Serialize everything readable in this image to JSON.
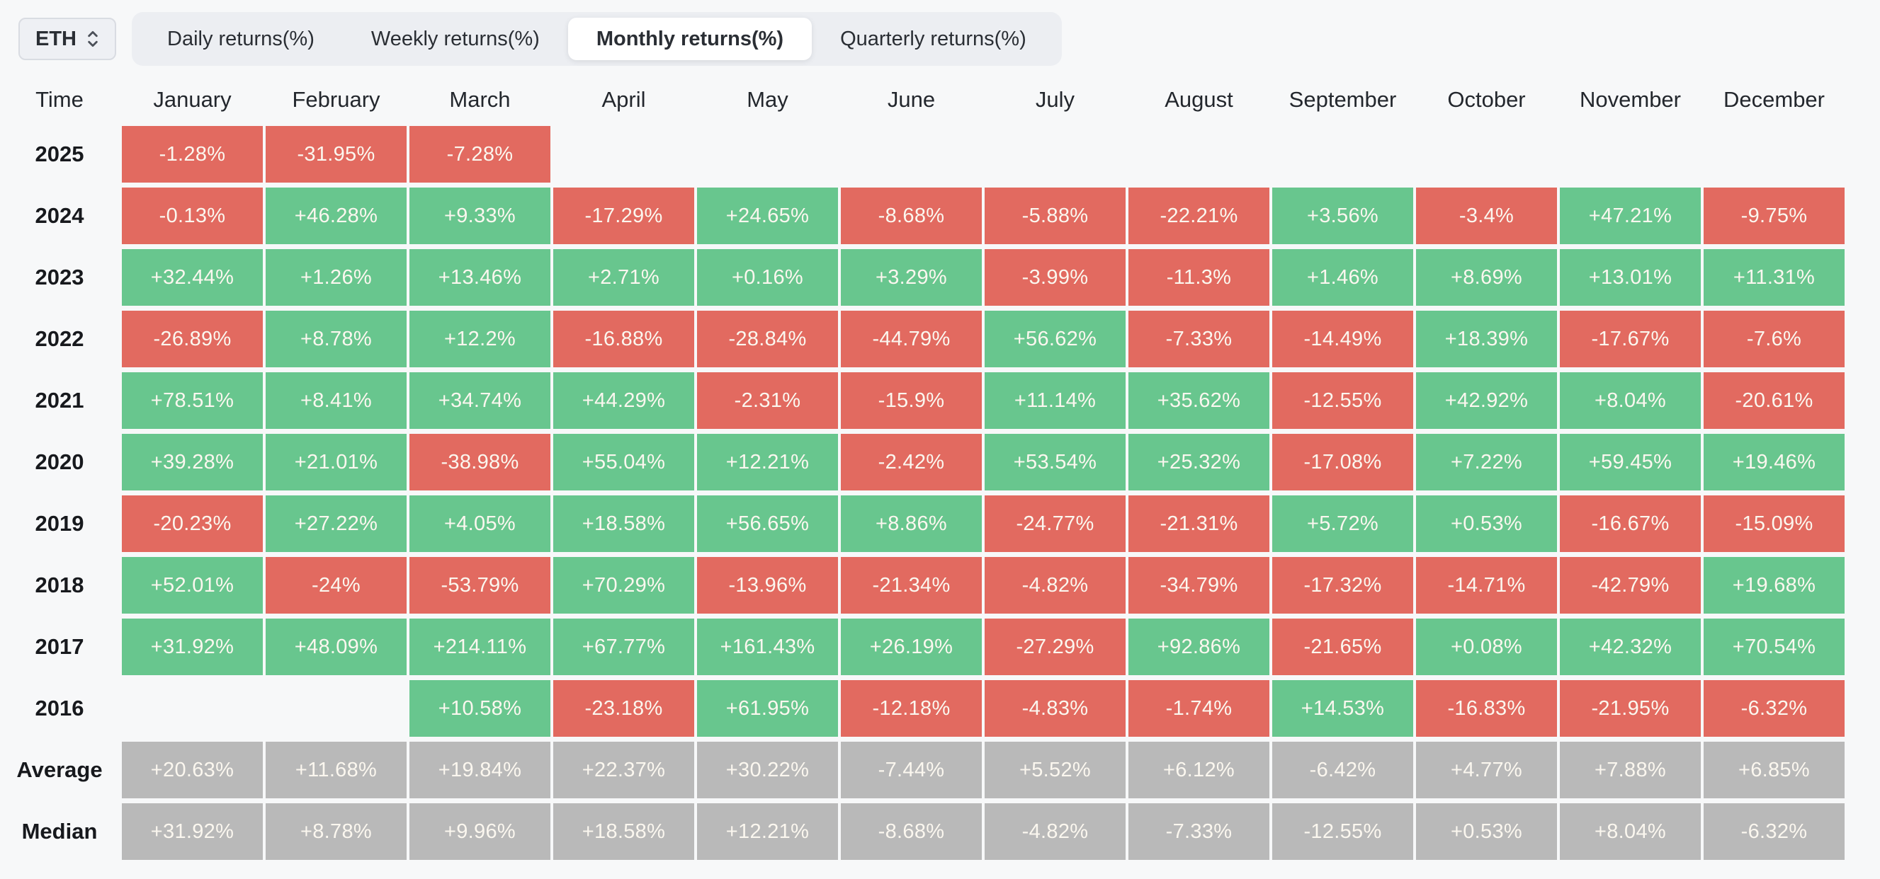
{
  "asset_selector": {
    "value": "ETH"
  },
  "tabs": [
    {
      "label": "Daily returns(%)",
      "active": false
    },
    {
      "label": "Weekly returns(%)",
      "active": false
    },
    {
      "label": "Monthly returns(%)",
      "active": true
    },
    {
      "label": "Quarterly returns(%)",
      "active": false
    }
  ],
  "colors": {
    "positive": "#68c68e",
    "negative": "#e26a60",
    "neutral": "#b9b9b9",
    "page_bg": "#f7f8f9",
    "tabbar_bg": "#eceef2",
    "active_tab_bg": "#ffffff",
    "cell_text": "#fbf7ef"
  },
  "table": {
    "time_header": "Time",
    "months": [
      "January",
      "February",
      "March",
      "April",
      "May",
      "June",
      "July",
      "August",
      "September",
      "October",
      "November",
      "December"
    ],
    "rows": [
      {
        "label": "2025",
        "type": "year",
        "cells": [
          {
            "v": "-1.28%",
            "c": "red"
          },
          {
            "v": "-31.95%",
            "c": "red"
          },
          {
            "v": "-7.28%",
            "c": "red"
          },
          null,
          null,
          null,
          null,
          null,
          null,
          null,
          null,
          null
        ]
      },
      {
        "label": "2024",
        "type": "year",
        "cells": [
          {
            "v": "-0.13%",
            "c": "red"
          },
          {
            "v": "+46.28%",
            "c": "green"
          },
          {
            "v": "+9.33%",
            "c": "green"
          },
          {
            "v": "-17.29%",
            "c": "red"
          },
          {
            "v": "+24.65%",
            "c": "green"
          },
          {
            "v": "-8.68%",
            "c": "red"
          },
          {
            "v": "-5.88%",
            "c": "red"
          },
          {
            "v": "-22.21%",
            "c": "red"
          },
          {
            "v": "+3.56%",
            "c": "green"
          },
          {
            "v": "-3.4%",
            "c": "red"
          },
          {
            "v": "+47.21%",
            "c": "green"
          },
          {
            "v": "-9.75%",
            "c": "red"
          }
        ]
      },
      {
        "label": "2023",
        "type": "year",
        "cells": [
          {
            "v": "+32.44%",
            "c": "green"
          },
          {
            "v": "+1.26%",
            "c": "green"
          },
          {
            "v": "+13.46%",
            "c": "green"
          },
          {
            "v": "+2.71%",
            "c": "green"
          },
          {
            "v": "+0.16%",
            "c": "green"
          },
          {
            "v": "+3.29%",
            "c": "green"
          },
          {
            "v": "-3.99%",
            "c": "red"
          },
          {
            "v": "-11.3%",
            "c": "red"
          },
          {
            "v": "+1.46%",
            "c": "green"
          },
          {
            "v": "+8.69%",
            "c": "green"
          },
          {
            "v": "+13.01%",
            "c": "green"
          },
          {
            "v": "+11.31%",
            "c": "green"
          }
        ]
      },
      {
        "label": "2022",
        "type": "year",
        "cells": [
          {
            "v": "-26.89%",
            "c": "red"
          },
          {
            "v": "+8.78%",
            "c": "green"
          },
          {
            "v": "+12.2%",
            "c": "green"
          },
          {
            "v": "-16.88%",
            "c": "red"
          },
          {
            "v": "-28.84%",
            "c": "red"
          },
          {
            "v": "-44.79%",
            "c": "red"
          },
          {
            "v": "+56.62%",
            "c": "green"
          },
          {
            "v": "-7.33%",
            "c": "red"
          },
          {
            "v": "-14.49%",
            "c": "red"
          },
          {
            "v": "+18.39%",
            "c": "green"
          },
          {
            "v": "-17.67%",
            "c": "red"
          },
          {
            "v": "-7.6%",
            "c": "red"
          }
        ]
      },
      {
        "label": "2021",
        "type": "year",
        "cells": [
          {
            "v": "+78.51%",
            "c": "green"
          },
          {
            "v": "+8.41%",
            "c": "green"
          },
          {
            "v": "+34.74%",
            "c": "green"
          },
          {
            "v": "+44.29%",
            "c": "green"
          },
          {
            "v": "-2.31%",
            "c": "red"
          },
          {
            "v": "-15.9%",
            "c": "red"
          },
          {
            "v": "+11.14%",
            "c": "green"
          },
          {
            "v": "+35.62%",
            "c": "green"
          },
          {
            "v": "-12.55%",
            "c": "red"
          },
          {
            "v": "+42.92%",
            "c": "green"
          },
          {
            "v": "+8.04%",
            "c": "green"
          },
          {
            "v": "-20.61%",
            "c": "red"
          }
        ]
      },
      {
        "label": "2020",
        "type": "year",
        "cells": [
          {
            "v": "+39.28%",
            "c": "green"
          },
          {
            "v": "+21.01%",
            "c": "green"
          },
          {
            "v": "-38.98%",
            "c": "red"
          },
          {
            "v": "+55.04%",
            "c": "green"
          },
          {
            "v": "+12.21%",
            "c": "green"
          },
          {
            "v": "-2.42%",
            "c": "red"
          },
          {
            "v": "+53.54%",
            "c": "green"
          },
          {
            "v": "+25.32%",
            "c": "green"
          },
          {
            "v": "-17.08%",
            "c": "red"
          },
          {
            "v": "+7.22%",
            "c": "green"
          },
          {
            "v": "+59.45%",
            "c": "green"
          },
          {
            "v": "+19.46%",
            "c": "green"
          }
        ]
      },
      {
        "label": "2019",
        "type": "year",
        "cells": [
          {
            "v": "-20.23%",
            "c": "red"
          },
          {
            "v": "+27.22%",
            "c": "green"
          },
          {
            "v": "+4.05%",
            "c": "green"
          },
          {
            "v": "+18.58%",
            "c": "green"
          },
          {
            "v": "+56.65%",
            "c": "green"
          },
          {
            "v": "+8.86%",
            "c": "green"
          },
          {
            "v": "-24.77%",
            "c": "red"
          },
          {
            "v": "-21.31%",
            "c": "red"
          },
          {
            "v": "+5.72%",
            "c": "green"
          },
          {
            "v": "+0.53%",
            "c": "green"
          },
          {
            "v": "-16.67%",
            "c": "red"
          },
          {
            "v": "-15.09%",
            "c": "red"
          }
        ]
      },
      {
        "label": "2018",
        "type": "year",
        "cells": [
          {
            "v": "+52.01%",
            "c": "green"
          },
          {
            "v": "-24%",
            "c": "red"
          },
          {
            "v": "-53.79%",
            "c": "red"
          },
          {
            "v": "+70.29%",
            "c": "green"
          },
          {
            "v": "-13.96%",
            "c": "red"
          },
          {
            "v": "-21.34%",
            "c": "red"
          },
          {
            "v": "-4.82%",
            "c": "red"
          },
          {
            "v": "-34.79%",
            "c": "red"
          },
          {
            "v": "-17.32%",
            "c": "red"
          },
          {
            "v": "-14.71%",
            "c": "red"
          },
          {
            "v": "-42.79%",
            "c": "red"
          },
          {
            "v": "+19.68%",
            "c": "green"
          }
        ]
      },
      {
        "label": "2017",
        "type": "year",
        "cells": [
          {
            "v": "+31.92%",
            "c": "green"
          },
          {
            "v": "+48.09%",
            "c": "green"
          },
          {
            "v": "+214.11%",
            "c": "green"
          },
          {
            "v": "+67.77%",
            "c": "green"
          },
          {
            "v": "+161.43%",
            "c": "green"
          },
          {
            "v": "+26.19%",
            "c": "green"
          },
          {
            "v": "-27.29%",
            "c": "red"
          },
          {
            "v": "+92.86%",
            "c": "green"
          },
          {
            "v": "-21.65%",
            "c": "red"
          },
          {
            "v": "+0.08%",
            "c": "green"
          },
          {
            "v": "+42.32%",
            "c": "green"
          },
          {
            "v": "+70.54%",
            "c": "green"
          }
        ]
      },
      {
        "label": "2016",
        "type": "year",
        "cells": [
          null,
          null,
          {
            "v": "+10.58%",
            "c": "green"
          },
          {
            "v": "-23.18%",
            "c": "red"
          },
          {
            "v": "+61.95%",
            "c": "green"
          },
          {
            "v": "-12.18%",
            "c": "red"
          },
          {
            "v": "-4.83%",
            "c": "red"
          },
          {
            "v": "-1.74%",
            "c": "red"
          },
          {
            "v": "+14.53%",
            "c": "green"
          },
          {
            "v": "-16.83%",
            "c": "red"
          },
          {
            "v": "-21.95%",
            "c": "red"
          },
          {
            "v": "-6.32%",
            "c": "red"
          }
        ]
      },
      {
        "label": "Average",
        "type": "summary",
        "cells": [
          {
            "v": "+20.63%",
            "c": "gray"
          },
          {
            "v": "+11.68%",
            "c": "gray"
          },
          {
            "v": "+19.84%",
            "c": "gray"
          },
          {
            "v": "+22.37%",
            "c": "gray"
          },
          {
            "v": "+30.22%",
            "c": "gray"
          },
          {
            "v": "-7.44%",
            "c": "gray"
          },
          {
            "v": "+5.52%",
            "c": "gray"
          },
          {
            "v": "+6.12%",
            "c": "gray"
          },
          {
            "v": "-6.42%",
            "c": "gray"
          },
          {
            "v": "+4.77%",
            "c": "gray"
          },
          {
            "v": "+7.88%",
            "c": "gray"
          },
          {
            "v": "+6.85%",
            "c": "gray"
          }
        ]
      },
      {
        "label": "Median",
        "type": "summary",
        "cells": [
          {
            "v": "+31.92%",
            "c": "gray"
          },
          {
            "v": "+8.78%",
            "c": "gray"
          },
          {
            "v": "+9.96%",
            "c": "gray"
          },
          {
            "v": "+18.58%",
            "c": "gray"
          },
          {
            "v": "+12.21%",
            "c": "gray"
          },
          {
            "v": "-8.68%",
            "c": "gray"
          },
          {
            "v": "-4.82%",
            "c": "gray"
          },
          {
            "v": "-7.33%",
            "c": "gray"
          },
          {
            "v": "-12.55%",
            "c": "gray"
          },
          {
            "v": "+0.53%",
            "c": "gray"
          },
          {
            "v": "+8.04%",
            "c": "gray"
          },
          {
            "v": "-6.32%",
            "c": "gray"
          }
        ]
      }
    ]
  }
}
